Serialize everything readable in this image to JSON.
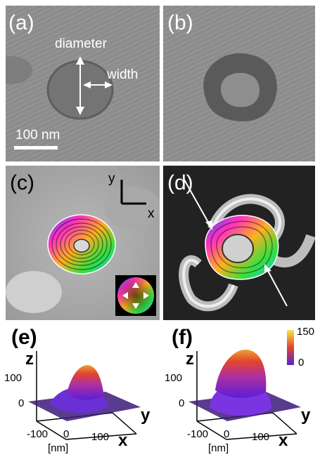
{
  "panels": {
    "a": {
      "label": "(a)",
      "diameter_label": "diameter",
      "width_label": "width",
      "scalebar_label": "100 nm"
    },
    "b": {
      "label": "(b)"
    },
    "c": {
      "label": "(c)",
      "axis_y": "y",
      "axis_x": "x",
      "color_wheel": "in-plane magnetization direction color wheel"
    },
    "d": {
      "label": "(d)"
    },
    "e": {
      "label": "(e)",
      "z_label": "z",
      "y_label": "y",
      "x_label": "x",
      "z_ticks": [
        "100",
        "0"
      ],
      "x_ticks": [
        "-100",
        "0",
        "100"
      ],
      "unit": "[nm]"
    },
    "f": {
      "label": "(f)",
      "z_label": "z",
      "y_label": "y",
      "x_label": "x",
      "z_ticks": [
        "100",
        "0"
      ],
      "x_ticks": [
        "-100",
        "0",
        "100"
      ],
      "unit": "[nm]",
      "colorbar_max": "150",
      "colorbar_min": "0"
    }
  },
  "colors": {
    "hole": "#747474",
    "rim_b": "#5a5a5a",
    "colorbar_top": "#f5e84a",
    "colorbar_mid": "#e0452d",
    "colorbar_bottom": "#5b1fd6"
  }
}
